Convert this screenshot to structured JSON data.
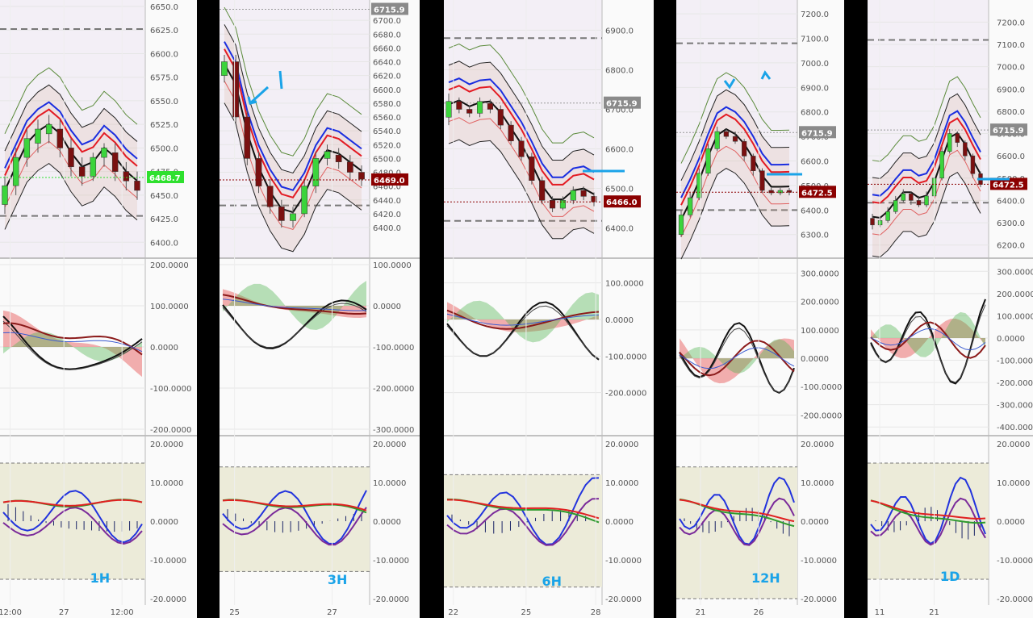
{
  "chart_data": [
    {
      "type": "line",
      "timeframe": "1H",
      "x_ticks": [
        "12:00",
        "27",
        "12:00"
      ],
      "price": {
        "ylim": [
          6390,
          6650
        ],
        "ticks": [
          "6650.0",
          "6625.0",
          "6600.0",
          "6575.0",
          "6550.0",
          "6525.0",
          "6500.0",
          "6475.0",
          "6450.0",
          "6425.0",
          "6400.0"
        ],
        "last_price": "6468.7",
        "last_value": 6468.7,
        "last_color": "#2ee02e",
        "dashed_levels": [
          6626,
          6428
        ],
        "candles": [
          [
            6440,
            6460,
            6430,
            6470
          ],
          [
            6460,
            6490,
            6450,
            6500
          ],
          [
            6490,
            6510,
            6480,
            6520
          ],
          [
            6505,
            6520,
            6495,
            6530
          ],
          [
            6515,
            6525,
            6505,
            6535
          ],
          [
            6520,
            6500,
            6490,
            6530
          ],
          [
            6500,
            6480,
            6470,
            6510
          ],
          [
            6480,
            6470,
            6460,
            6490
          ],
          [
            6470,
            6490,
            6465,
            6495
          ],
          [
            6490,
            6500,
            6480,
            6505
          ],
          [
            6495,
            6475,
            6465,
            6505
          ],
          [
            6475,
            6465,
            6455,
            6485
          ],
          [
            6465,
            6455,
            6445,
            6475
          ]
        ]
      },
      "ind1": {
        "ylim": [
          -200,
          200
        ],
        "ticks": [
          "200.0000",
          "100.0000",
          "0.0000",
          "-100.0000",
          "-200.0000"
        ]
      },
      "ind2": {
        "ylim": [
          -20,
          20
        ],
        "ticks": [
          "20.0000",
          "10.0000",
          "0.0000",
          "-10.0000",
          "-20.0000"
        ],
        "band": [
          15,
          -15
        ]
      }
    },
    {
      "type": "line",
      "timeframe": "3H",
      "x_ticks": [
        "25",
        "27"
      ],
      "price": {
        "ylim": [
          6365,
          6720
        ],
        "ticks": [
          "6700.0",
          "6680.0",
          "6660.0",
          "6640.0",
          "6620.0",
          "6600.0",
          "6580.0",
          "6560.0",
          "6540.0",
          "6520.0",
          "6500.0",
          "6480.0",
          "6460.0",
          "6440.0",
          "6420.0",
          "6400.0"
        ],
        "last_price": "6469.0",
        "last_value": 6469.0,
        "last_color": "#8b0000",
        "ref_price": "6715.9",
        "ref_value": 6715.9,
        "dashed_levels": [
          6432
        ],
        "candles": [
          [
            6620,
            6640,
            6610,
            6650
          ],
          [
            6640,
            6560,
            6550,
            6650
          ],
          [
            6560,
            6500,
            6490,
            6570
          ],
          [
            6500,
            6460,
            6450,
            6510
          ],
          [
            6460,
            6430,
            6420,
            6470
          ],
          [
            6430,
            6410,
            6400,
            6440
          ],
          [
            6410,
            6420,
            6400,
            6430
          ],
          [
            6420,
            6460,
            6415,
            6470
          ],
          [
            6460,
            6500,
            6450,
            6510
          ],
          [
            6500,
            6510,
            6490,
            6520
          ],
          [
            6505,
            6495,
            6485,
            6515
          ],
          [
            6495,
            6480,
            6470,
            6505
          ],
          [
            6480,
            6470,
            6460,
            6490
          ]
        ]
      },
      "ind1": {
        "ylim": [
          -300,
          100
        ],
        "ticks": [
          "100.0000",
          "0.0000",
          "-100.0000",
          "-200.0000",
          "-300.0000"
        ]
      },
      "ind2": {
        "ylim": [
          -20,
          20
        ],
        "ticks": [
          "20.0000",
          "10.0000",
          "0.0000",
          "-10.0000",
          "-20.0000"
        ],
        "band": [
          14,
          -13
        ]
      }
    },
    {
      "type": "line",
      "timeframe": "6H",
      "x_ticks": [
        "22",
        "25",
        "28"
      ],
      "price": {
        "ylim": [
          6340,
          6960
        ],
        "ticks": [
          "6900.0",
          "6800.0",
          "6700.0",
          "6600.0",
          "6500.0",
          "6400.0"
        ],
        "last_price": "6466.0",
        "last_value": 6466.0,
        "last_color": "#8b0000",
        "ref_price": "6715.9",
        "ref_value": 6715.9,
        "dashed_levels": [
          6880,
          6418
        ],
        "candles": [
          [
            6680,
            6720,
            6660,
            6740
          ],
          [
            6720,
            6700,
            6690,
            6730
          ],
          [
            6700,
            6690,
            6680,
            6710
          ],
          [
            6690,
            6720,
            6680,
            6730
          ],
          [
            6715,
            6700,
            6690,
            6725
          ],
          [
            6700,
            6660,
            6650,
            6710
          ],
          [
            6660,
            6620,
            6610,
            6670
          ],
          [
            6620,
            6580,
            6570,
            6630
          ],
          [
            6580,
            6520,
            6510,
            6590
          ],
          [
            6520,
            6470,
            6460,
            6530
          ],
          [
            6470,
            6450,
            6440,
            6480
          ],
          [
            6450,
            6470,
            6445,
            6480
          ],
          [
            6470,
            6495,
            6460,
            6505
          ],
          [
            6495,
            6480,
            6470,
            6505
          ],
          [
            6480,
            6466,
            6455,
            6490
          ]
        ]
      },
      "ind1": {
        "ylim": [
          -300,
          150
        ],
        "ticks": [
          "100.0000",
          "0.0000",
          "-100.0000",
          "-200.0000"
        ]
      },
      "ind2": {
        "ylim": [
          -20,
          20
        ],
        "ticks": [
          "20.0000",
          "10.0000",
          "0.0000",
          "-10.0000",
          "-20.0000"
        ],
        "band": [
          12,
          -17
        ]
      }
    },
    {
      "type": "line",
      "timeframe": "12H",
      "x_ticks": [
        "21",
        "26"
      ],
      "price": {
        "ylim": [
          6230,
          7230
        ],
        "ticks": [
          "7200.0",
          "7100.0",
          "7000.0",
          "6900.0",
          "6800.0",
          "6700.0",
          "6600.0",
          "6500.0",
          "6400.0",
          "6300.0"
        ],
        "last_price": "6472.5",
        "last_value": 6472.5,
        "last_color": "#8b0000",
        "ref_price": "6715.9",
        "ref_value": 6715.9,
        "dashed_levels": [
          7080,
          6400
        ],
        "candles": [
          [
            6300,
            6380,
            6290,
            6400
          ],
          [
            6380,
            6450,
            6370,
            6470
          ],
          [
            6450,
            6550,
            6440,
            6570
          ],
          [
            6550,
            6650,
            6540,
            6670
          ],
          [
            6650,
            6720,
            6640,
            6740
          ],
          [
            6720,
            6700,
            6690,
            6730
          ],
          [
            6700,
            6680,
            6670,
            6720
          ],
          [
            6680,
            6620,
            6600,
            6690
          ],
          [
            6620,
            6560,
            6540,
            6630
          ],
          [
            6560,
            6480,
            6470,
            6570
          ],
          [
            6480,
            6470,
            6460,
            6490
          ],
          [
            6470,
            6480,
            6460,
            6490
          ],
          [
            6480,
            6472,
            6460,
            6490
          ]
        ]
      },
      "ind1": {
        "ylim": [
          -250,
          330
        ],
        "ticks": [
          "300.0000",
          "200.0000",
          "100.0000",
          "0.0000",
          "-100.0000",
          "-200.0000"
        ]
      },
      "ind2": {
        "ylim": [
          -20,
          20
        ],
        "ticks": [
          "20.0000",
          "10.0000",
          "0.0000",
          "-10.0000",
          "-20.0000"
        ],
        "band": [
          14,
          -20
        ]
      }
    },
    {
      "type": "line",
      "timeframe": "1D",
      "x_ticks": [
        "11",
        "21"
      ],
      "price": {
        "ylim": [
          6170,
          7270
        ],
        "ticks": [
          "7200.0",
          "7100.0",
          "7000.0",
          "6900.0",
          "6800.0",
          "6700.0",
          "6600.0",
          "6500.0",
          "6400.0",
          "6300.0",
          "6200.0"
        ],
        "last_price": "6472.5",
        "last_value": 6472.5,
        "last_color": "#8b0000",
        "ref_price": "6715.9",
        "ref_value": 6715.9,
        "dashed_levels": [
          7120,
          6390
        ],
        "candles": [
          [
            6320,
            6290,
            6270,
            6340
          ],
          [
            6290,
            6310,
            6280,
            6330
          ],
          [
            6310,
            6350,
            6300,
            6370
          ],
          [
            6350,
            6400,
            6340,
            6420
          ],
          [
            6400,
            6430,
            6390,
            6450
          ],
          [
            6430,
            6400,
            6380,
            6440
          ],
          [
            6400,
            6380,
            6370,
            6420
          ],
          [
            6380,
            6420,
            6370,
            6440
          ],
          [
            6420,
            6500,
            6410,
            6520
          ],
          [
            6500,
            6620,
            6490,
            6640
          ],
          [
            6620,
            6700,
            6610,
            6720
          ],
          [
            6700,
            6660,
            6640,
            6710
          ],
          [
            6660,
            6600,
            6580,
            6670
          ],
          [
            6600,
            6520,
            6500,
            6610
          ],
          [
            6520,
            6472,
            6460,
            6530
          ]
        ]
      },
      "ind1": {
        "ylim": [
          -410,
          330
        ],
        "ticks": [
          "300.0000",
          "200.0000",
          "100.0000",
          "0.0000",
          "-100.0000",
          "-200.0000",
          "-300.0000",
          "-400.0000"
        ]
      },
      "ind2": {
        "ylim": [
          -20,
          20
        ],
        "ticks": [
          "20.0000",
          "10.0000",
          "0.0000",
          "-10.0000",
          "-20.0000"
        ],
        "band": [
          15,
          -15
        ]
      }
    }
  ]
}
